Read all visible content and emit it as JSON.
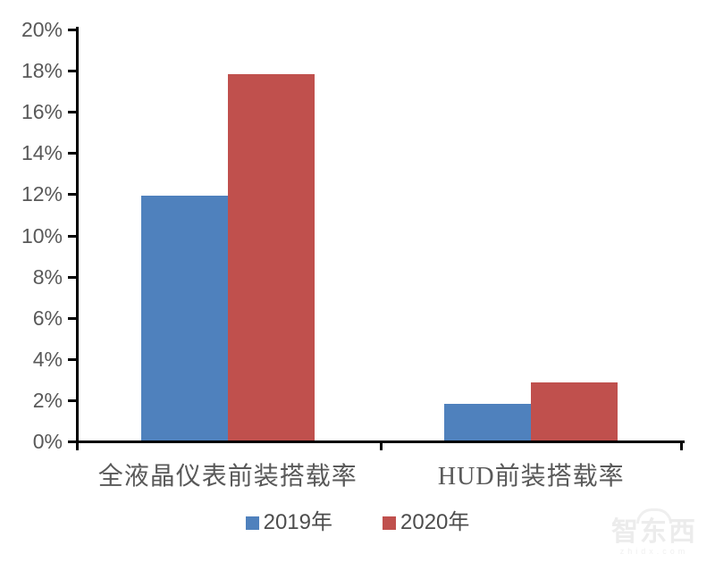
{
  "chart_data": {
    "type": "bar",
    "categories": [
      "全液晶仪表前装搭载率",
      "HUD前装搭载率"
    ],
    "series": [
      {
        "name": "2019年",
        "color": "#4F81BD",
        "values": [
          11.9,
          1.8
        ]
      },
      {
        "name": "2020年",
        "color": "#C0504D",
        "values": [
          17.8,
          2.8
        ]
      }
    ],
    "title": "",
    "xlabel": "",
    "ylabel": "",
    "ylim": [
      0,
      20
    ],
    "ytick_step": 2,
    "ytick_suffix": "%",
    "grid": false,
    "legend_position": "bottom"
  },
  "style": {
    "axis_color": "#000000",
    "tick_label_color": "#595959",
    "legend_text_color": "#4d4d4d"
  },
  "watermark": {
    "title": "智东西",
    "subtitle": "zhidx.com"
  }
}
